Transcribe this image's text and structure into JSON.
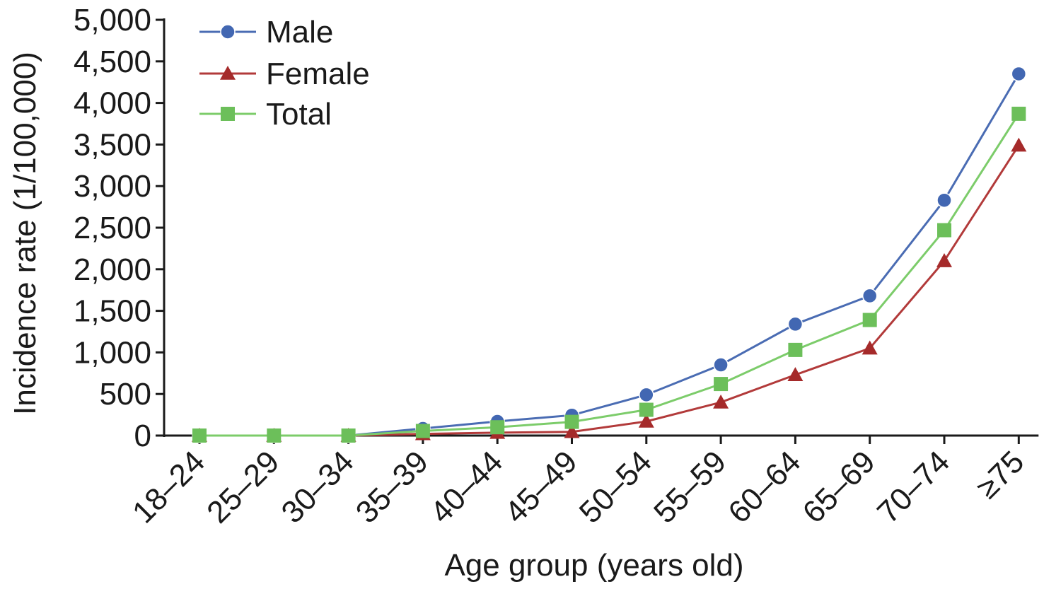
{
  "chart_data": {
    "type": "line",
    "title": "",
    "xlabel": "Age group (years old)",
    "ylabel": "Incidence rate (1/100,000)",
    "ylim": [
      0,
      5000
    ],
    "yticks": [
      0,
      500,
      1000,
      1500,
      2000,
      2500,
      3000,
      3500,
      4000,
      4500,
      5000
    ],
    "ytick_labels": [
      "0",
      "500",
      "1,000",
      "1,500",
      "2,000",
      "2,500",
      "3,000",
      "3,500",
      "4,000",
      "4,500",
      "5,000"
    ],
    "categories": [
      "18–24",
      "25–29",
      "30–34",
      "35–39",
      "40–44",
      "45–49",
      "50–54",
      "55–59",
      "60–64",
      "65–69",
      "70–74",
      "≥75"
    ],
    "grid": false,
    "legend_position": "top-left",
    "series": [
      {
        "name": "Male",
        "marker": "circle",
        "color": "#4a6cb3",
        "marker_color": "#4267b2",
        "values": [
          0,
          0,
          0,
          85,
          170,
          245,
          490,
          850,
          1340,
          1680,
          2830,
          4350
        ]
      },
      {
        "name": "Female",
        "marker": "triangle",
        "color": "#b23a3a",
        "marker_color": "#a52a2a",
        "values": [
          0,
          0,
          0,
          20,
          35,
          45,
          170,
          400,
          730,
          1050,
          2100,
          3490
        ]
      },
      {
        "name": "Total",
        "marker": "square",
        "color": "#7ccc6a",
        "marker_color": "#6cbf5a",
        "values": [
          0,
          0,
          0,
          55,
          100,
          165,
          310,
          620,
          1030,
          1390,
          2470,
          3870
        ]
      }
    ]
  }
}
